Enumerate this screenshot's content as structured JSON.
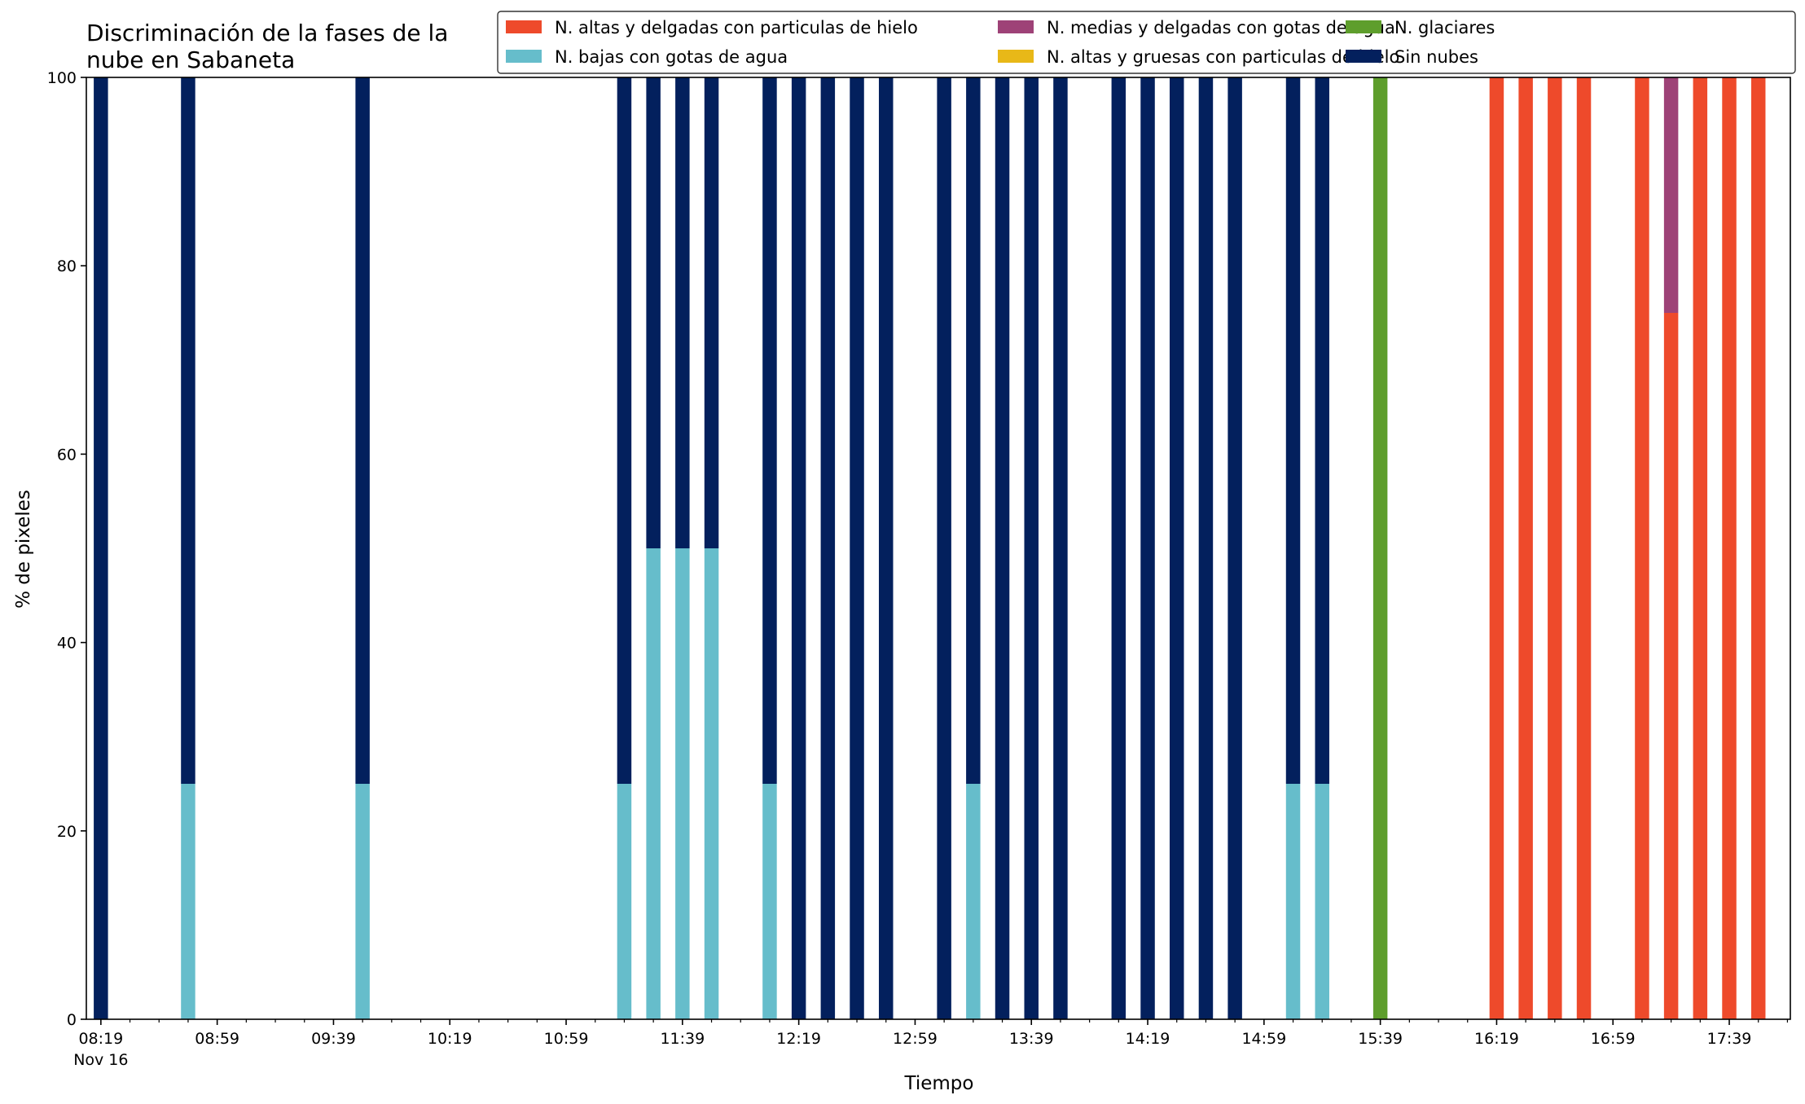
{
  "chart_data": {
    "type": "bar",
    "stacked": true,
    "title_lines": [
      "Discriminación de la fases de la",
      "nube en Sabaneta"
    ],
    "xlabel": "Tiempo",
    "ylabel": "% de pixeles",
    "ylim": [
      0,
      100
    ],
    "yticks": [
      0,
      20,
      40,
      60,
      80,
      100
    ],
    "xlim_minutes": [
      494,
      1080
    ],
    "xticks": [
      {
        "t": 499,
        "label": "08:19",
        "sub": "Nov 16"
      },
      {
        "t": 539,
        "label": "08:59"
      },
      {
        "t": 579,
        "label": "09:39"
      },
      {
        "t": 619,
        "label": "10:19"
      },
      {
        "t": 659,
        "label": "10:59"
      },
      {
        "t": 699,
        "label": "11:39"
      },
      {
        "t": 739,
        "label": "12:19"
      },
      {
        "t": 779,
        "label": "12:59"
      },
      {
        "t": 819,
        "label": "13:39"
      },
      {
        "t": 859,
        "label": "14:19"
      },
      {
        "t": 899,
        "label": "14:59"
      },
      {
        "t": 939,
        "label": "15:39"
      },
      {
        "t": 979,
        "label": "16:19"
      },
      {
        "t": 1019,
        "label": "16:59"
      },
      {
        "t": 1059,
        "label": "17:39"
      }
    ],
    "legend_position": "upper right, 3 columns",
    "series": [
      {
        "name": "N. altas y delgadas con particulas de hielo",
        "color": "#ee4a2b"
      },
      {
        "name": "N. altas y gruesas con particulas de hielo",
        "color": "#e8b818"
      },
      {
        "name": "N. bajas con gotas de agua",
        "color": "#66bdcb"
      },
      {
        "name": "N. glaciares",
        "color": "#5e9e2c"
      },
      {
        "name": "N. medias y delgadas con gotas de agua",
        "color": "#9e4277"
      },
      {
        "name": "Sin nubes",
        "color": "#03205d"
      }
    ],
    "legend_order": [
      0,
      2,
      4,
      1,
      3,
      5
    ],
    "stack_order": [
      0,
      1,
      2,
      3,
      4,
      5
    ],
    "bars": [
      {
        "time": "08:19",
        "values": [
          0,
          0,
          0,
          0,
          0,
          100
        ]
      },
      {
        "time": "08:49",
        "values": [
          0,
          0,
          25,
          0,
          0,
          75
        ]
      },
      {
        "time": "09:49",
        "values": [
          0,
          0,
          25,
          0,
          0,
          75
        ]
      },
      {
        "time": "11:19",
        "values": [
          0,
          0,
          25,
          0,
          0,
          75
        ]
      },
      {
        "time": "11:29",
        "values": [
          0,
          0,
          50,
          0,
          0,
          50
        ]
      },
      {
        "time": "11:39",
        "values": [
          0,
          0,
          50,
          0,
          0,
          50
        ]
      },
      {
        "time": "11:49",
        "values": [
          0,
          0,
          50,
          0,
          0,
          50
        ]
      },
      {
        "time": "12:09",
        "values": [
          0,
          0,
          25,
          0,
          0,
          75
        ]
      },
      {
        "time": "12:19",
        "values": [
          0,
          0,
          0,
          0,
          0,
          100
        ]
      },
      {
        "time": "12:29",
        "values": [
          0,
          0,
          0,
          0,
          0,
          100
        ]
      },
      {
        "time": "12:39",
        "values": [
          0,
          0,
          0,
          0,
          0,
          100
        ]
      },
      {
        "time": "12:49",
        "values": [
          0,
          0,
          0,
          0,
          0,
          100
        ]
      },
      {
        "time": "13:09",
        "values": [
          0,
          0,
          0,
          0,
          0,
          100
        ]
      },
      {
        "time": "13:19",
        "values": [
          0,
          0,
          25,
          0,
          0,
          75
        ]
      },
      {
        "time": "13:29",
        "values": [
          0,
          0,
          0,
          0,
          0,
          100
        ]
      },
      {
        "time": "13:39",
        "values": [
          0,
          0,
          0,
          0,
          0,
          100
        ]
      },
      {
        "time": "13:49",
        "values": [
          0,
          0,
          0,
          0,
          0,
          100
        ]
      },
      {
        "time": "14:09",
        "values": [
          0,
          0,
          0,
          0,
          0,
          100
        ]
      },
      {
        "time": "14:19",
        "values": [
          0,
          0,
          0,
          0,
          0,
          100
        ]
      },
      {
        "time": "14:29",
        "values": [
          0,
          0,
          0,
          0,
          0,
          100
        ]
      },
      {
        "time": "14:39",
        "values": [
          0,
          0,
          0,
          0,
          0,
          100
        ]
      },
      {
        "time": "14:49",
        "values": [
          0,
          0,
          0,
          0,
          0,
          100
        ]
      },
      {
        "time": "15:09",
        "values": [
          0,
          0,
          25,
          0,
          0,
          75
        ]
      },
      {
        "time": "15:19",
        "values": [
          0,
          0,
          25,
          0,
          0,
          75
        ]
      },
      {
        "time": "15:39",
        "values": [
          0,
          0,
          0,
          100,
          0,
          0
        ]
      },
      {
        "time": "16:19",
        "values": [
          100,
          0,
          0,
          0,
          0,
          0
        ]
      },
      {
        "time": "16:29",
        "values": [
          100,
          0,
          0,
          0,
          0,
          0
        ]
      },
      {
        "time": "16:39",
        "values": [
          100,
          0,
          0,
          0,
          0,
          0
        ]
      },
      {
        "time": "16:49",
        "values": [
          100,
          0,
          0,
          0,
          0,
          0
        ]
      },
      {
        "time": "17:09",
        "values": [
          100,
          0,
          0,
          0,
          0,
          0
        ]
      },
      {
        "time": "17:19",
        "values": [
          75,
          0,
          0,
          0,
          25,
          0
        ]
      },
      {
        "time": "17:29",
        "values": [
          100,
          0,
          0,
          0,
          0,
          0
        ]
      },
      {
        "time": "17:39",
        "values": [
          100,
          0,
          0,
          0,
          0,
          0
        ]
      },
      {
        "time": "17:49",
        "values": [
          100,
          0,
          0,
          0,
          0,
          0
        ]
      }
    ]
  }
}
